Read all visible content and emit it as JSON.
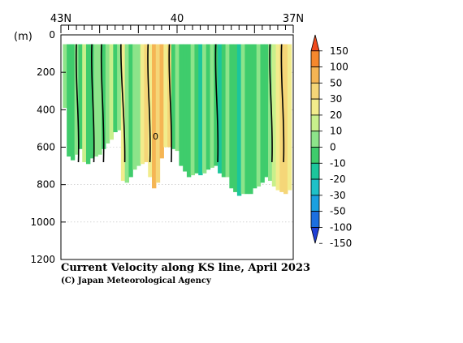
{
  "chart_data": {
    "type": "heatmap",
    "title": "Current Velocity along KS line, April 2023",
    "credit": "(C) Japan Meteorological Agency",
    "yunit": "(m)",
    "xlabel": "",
    "ylabel": "",
    "x_ticks": [
      {
        "value": 43,
        "label": "43N"
      },
      {
        "value": 40,
        "label": "40"
      },
      {
        "value": 37,
        "label": "37N"
      }
    ],
    "xlim": [
      43,
      37
    ],
    "y_ticks": [
      0,
      200,
      400,
      600,
      800,
      1000,
      1200
    ],
    "ylim": [
      0,
      1200
    ],
    "contour_label": "0",
    "colorbar": {
      "labels": [
        "150",
        "100",
        "50",
        "30",
        "20",
        "10",
        "0",
        "-10",
        "-20",
        "-30",
        "-50",
        "-100",
        "-150"
      ],
      "colors": [
        "#f04a1e",
        "#f5882d",
        "#f5b554",
        "#f5d678",
        "#f2ec8c",
        "#c8f08c",
        "#8de48a",
        "#3fcc6c",
        "#1cc69c",
        "#1ec1c8",
        "#1aa0e0",
        "#1c6fe0",
        "#2040d6"
      ]
    },
    "columns": [
      {
        "lat": 42.9,
        "depth": 390,
        "v": -5
      },
      {
        "lat": 42.8,
        "depth": 650,
        "v": -12
      },
      {
        "lat": 42.7,
        "depth": 670,
        "v": -18
      },
      {
        "lat": 42.6,
        "depth": 640,
        "v": -8
      },
      {
        "lat": 42.5,
        "depth": 610,
        "v": -15
      },
      {
        "lat": 42.4,
        "depth": 680,
        "v": 5
      },
      {
        "lat": 42.3,
        "depth": 690,
        "v": -12
      },
      {
        "lat": 42.2,
        "depth": 660,
        "v": -20
      },
      {
        "lat": 42.1,
        "depth": 650,
        "v": -5
      },
      {
        "lat": 42.0,
        "depth": 640,
        "v": -10
      },
      {
        "lat": 41.9,
        "depth": 610,
        "v": -15
      },
      {
        "lat": 41.8,
        "depth": 580,
        "v": -8
      },
      {
        "lat": 41.7,
        "depth": 560,
        "v": 8
      },
      {
        "lat": 41.6,
        "depth": 520,
        "v": -12
      },
      {
        "lat": 41.5,
        "depth": 510,
        "v": -3
      },
      {
        "lat": 41.4,
        "depth": 780,
        "v": 12
      },
      {
        "lat": 41.3,
        "depth": 790,
        "v": -8
      },
      {
        "lat": 41.2,
        "depth": 760,
        "v": -15
      },
      {
        "lat": 41.1,
        "depth": 720,
        "v": -10
      },
      {
        "lat": 41.0,
        "depth": 700,
        "v": -5
      },
      {
        "lat": 40.9,
        "depth": 690,
        "v": 18
      },
      {
        "lat": 40.8,
        "depth": 680,
        "v": 22
      },
      {
        "lat": 40.7,
        "depth": 760,
        "v": 10
      },
      {
        "lat": 40.6,
        "depth": 820,
        "v": 40
      },
      {
        "lat": 40.5,
        "depth": 790,
        "v": 28
      },
      {
        "lat": 40.4,
        "depth": 660,
        "v": 35
      },
      {
        "lat": 40.3,
        "depth": 600,
        "v": 18
      },
      {
        "lat": 40.2,
        "depth": 600,
        "v": 25
      },
      {
        "lat": 40.1,
        "depth": 610,
        "v": -15
      },
      {
        "lat": 40.0,
        "depth": 620,
        "v": -8
      },
      {
        "lat": 39.9,
        "depth": 700,
        "v": -20
      },
      {
        "lat": 39.8,
        "depth": 730,
        "v": -12
      },
      {
        "lat": 39.7,
        "depth": 760,
        "v": -18
      },
      {
        "lat": 39.6,
        "depth": 750,
        "v": -5
      },
      {
        "lat": 39.5,
        "depth": 740,
        "v": -14
      },
      {
        "lat": 39.4,
        "depth": 750,
        "v": -22
      },
      {
        "lat": 39.3,
        "depth": 740,
        "v": -10
      },
      {
        "lat": 39.2,
        "depth": 720,
        "v": -16
      },
      {
        "lat": 39.1,
        "depth": 710,
        "v": -6
      },
      {
        "lat": 39.0,
        "depth": 700,
        "v": -18
      },
      {
        "lat": 38.9,
        "depth": 740,
        "v": -25
      },
      {
        "lat": 38.8,
        "depth": 760,
        "v": -12
      },
      {
        "lat": 38.7,
        "depth": 760,
        "v": -8
      },
      {
        "lat": 38.6,
        "depth": 820,
        "v": -20
      },
      {
        "lat": 38.5,
        "depth": 840,
        "v": -14
      },
      {
        "lat": 38.4,
        "depth": 860,
        "v": -22
      },
      {
        "lat": 38.3,
        "depth": 850,
        "v": -10
      },
      {
        "lat": 38.2,
        "depth": 850,
        "v": -18
      },
      {
        "lat": 38.1,
        "depth": 850,
        "v": -12
      },
      {
        "lat": 38.0,
        "depth": 820,
        "v": -20
      },
      {
        "lat": 37.9,
        "depth": 810,
        "v": -8
      },
      {
        "lat": 37.8,
        "depth": 790,
        "v": -14
      },
      {
        "lat": 37.7,
        "depth": 760,
        "v": -18
      },
      {
        "lat": 37.6,
        "depth": 780,
        "v": -10
      },
      {
        "lat": 37.5,
        "depth": 810,
        "v": 5
      },
      {
        "lat": 37.4,
        "depth": 830,
        "v": 12
      },
      {
        "lat": 37.3,
        "depth": 840,
        "v": 22
      },
      {
        "lat": 37.2,
        "depth": 850,
        "v": 25
      },
      {
        "lat": 37.1,
        "depth": 830,
        "v": 18
      }
    ],
    "zero_contours": [
      {
        "lat_top": 42.6,
        "lat_bottom": 42.55
      },
      {
        "lat_top": 42.2,
        "lat_bottom": 42.15
      },
      {
        "lat_top": 41.95,
        "lat_bottom": 41.9
      },
      {
        "lat_top": 41.45,
        "lat_bottom": 41.35
      },
      {
        "lat_top": 40.75,
        "lat_bottom": 40.7
      },
      {
        "lat_top": 40.2,
        "lat_bottom": 40.15
      },
      {
        "lat_top": 39.0,
        "lat_bottom": 38.95
      },
      {
        "lat_top": 37.6,
        "lat_bottom": 37.55
      },
      {
        "lat_top": 37.3,
        "lat_bottom": 37.25
      }
    ]
  }
}
